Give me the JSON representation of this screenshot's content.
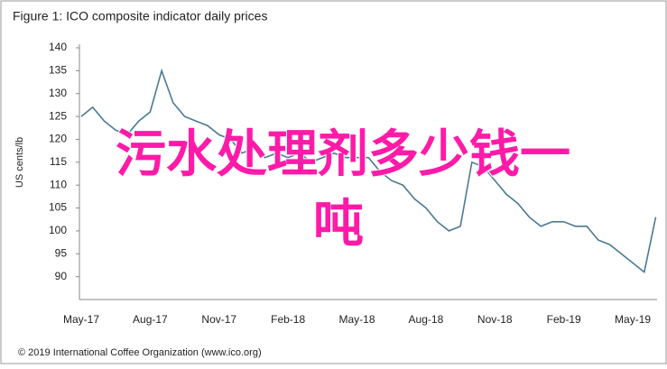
{
  "chart_data": {
    "type": "line",
    "title": "Figure 1: ICO composite indicator daily prices",
    "y_label": "US cents/lb",
    "footer": "© 2019 International Coffee Organization (www.ico.org)",
    "overlay": [
      "污水处理剂多少钱一",
      "吨"
    ],
    "categories": [
      "May-17",
      null,
      null,
      null,
      null,
      null,
      "Aug-17",
      null,
      null,
      null,
      null,
      null,
      "Nov-17",
      null,
      null,
      null,
      null,
      null,
      "Feb-18",
      null,
      null,
      null,
      null,
      null,
      "May-18",
      null,
      null,
      null,
      null,
      null,
      "Aug-18",
      null,
      null,
      null,
      null,
      null,
      "Nov-18",
      null,
      null,
      null,
      null,
      null,
      "Feb-19",
      null,
      null,
      null,
      null,
      null,
      "May-19",
      null,
      null
    ],
    "series": [
      {
        "name": "ICO composite",
        "color": "#4b7a93",
        "values": [
          125,
          127,
          124,
          122,
          121,
          124,
          126,
          135,
          128,
          125,
          124,
          123,
          121,
          120,
          117,
          118,
          116,
          117,
          116,
          117,
          115,
          116,
          117,
          116,
          116,
          116,
          113,
          111,
          110,
          107,
          105,
          102,
          100,
          101,
          115,
          114,
          111,
          108,
          106,
          103,
          101,
          102,
          102,
          101,
          101,
          98,
          97,
          95,
          93,
          91,
          103
        ]
      }
    ],
    "ylim": [
      85,
      140
    ],
    "yticks": [
      90,
      95,
      100,
      105,
      110,
      115,
      120,
      125,
      130,
      135,
      140
    ]
  }
}
